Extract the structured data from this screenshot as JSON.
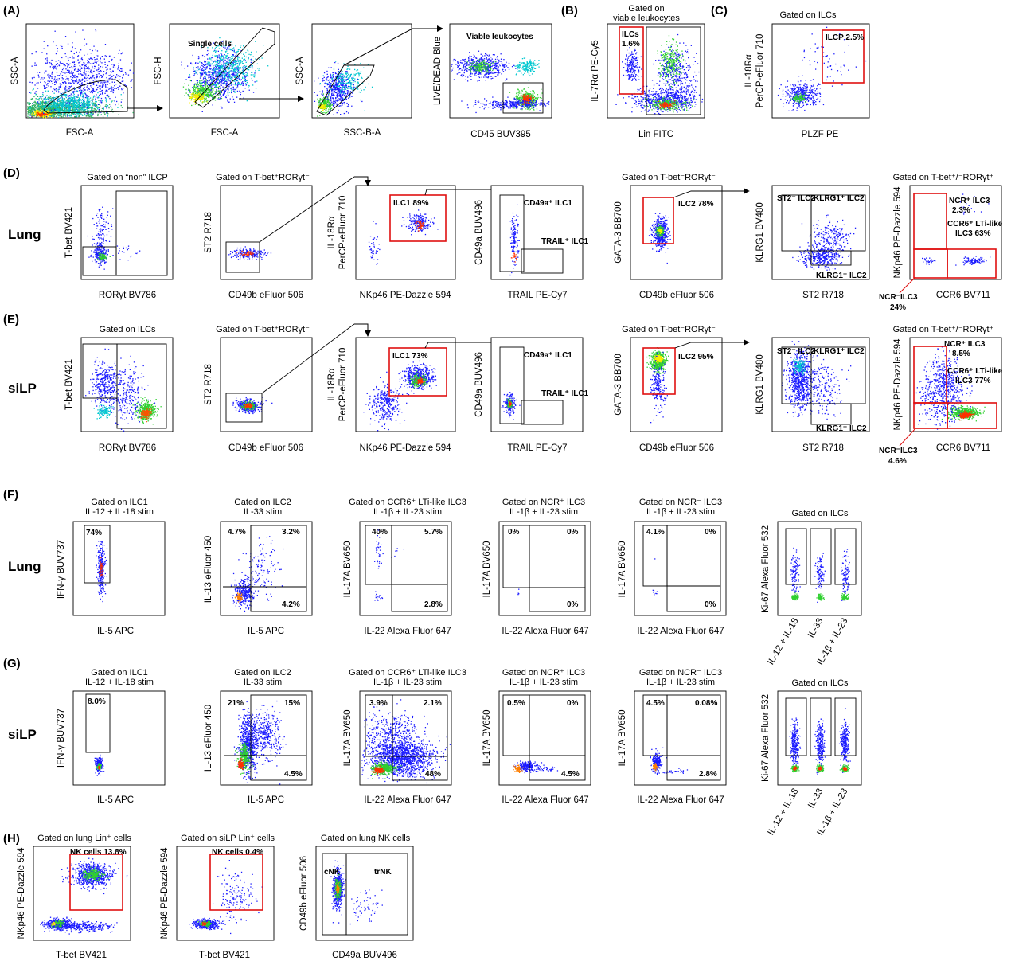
{
  "colors": {
    "red_gate": "#e01010",
    "density": [
      "#1a1aff",
      "#00c8c8",
      "#30d030",
      "#f0f000",
      "#ff8000",
      "#ff0000"
    ]
  },
  "panel_letters": [
    "(A)",
    "(B)",
    "(C)",
    "(D)",
    "(E)",
    "(F)",
    "(G)",
    "(H)"
  ],
  "row_labels": [
    "Lung",
    "siLP",
    "Lung",
    "siLP"
  ],
  "A": {
    "p1": {
      "x": "FSC-A",
      "y": "SSC-A"
    },
    "p2": {
      "x": "FSC-A",
      "y": "FSC-H",
      "gate": "Single cells"
    },
    "p3": {
      "x": "SSC-B-A",
      "y": "SSC-A"
    },
    "p4": {
      "x": "CD45 BUV395",
      "y": "LIVE/DEAD Blue",
      "gate": "Viable leukocytes"
    }
  },
  "B": {
    "title1": "Gated on",
    "title2": "viable leukocytes",
    "x": "Lin FITC",
    "y": "IL-7Rα PE-Cy5",
    "gate1": "ILCs",
    "gate2": "1.6%"
  },
  "C": {
    "title": "Gated on ILCs",
    "x": "PLZF PE",
    "y1": "IL-18Rα",
    "y2": "PerCP-eFluor 710",
    "gate": "ILCP 2.5%"
  },
  "D": {
    "t1": "Gated on “non” ILCP",
    "x1": "RORγt BV786",
    "y1": "T-bet BV421",
    "t2": "Gated on T-bet⁺RORγt⁻",
    "x2": "CD49b eFluor 506",
    "y2": "ST2 R718",
    "x3": "NKp46 PE-Dazzle 594",
    "y3a": "IL-18Rα",
    "y3b": "PerCP-eFluor 710",
    "g3": "ILC1 89%",
    "x4": "TRAIL PE-Cy7",
    "y4": "CD49a BUV496",
    "g4a": "CD49a⁺ ILC1",
    "g4b": "TRAIL⁺ ILC1",
    "t5": "Gated on T-bet⁻RORγt⁻",
    "x5": "CD49b eFluor 506",
    "y5": "GATA-3 BB700",
    "g5": "ILC2 78%",
    "x6": "ST2 R718",
    "y6": "KLRG1 BV480",
    "g6a": "ST2⁻ ILC2",
    "g6b": "KLRG1⁺ ILC2",
    "g6c": "KLRG1⁻ ILC2",
    "t7": "Gated on T-bet⁺/⁻RORγt⁺",
    "x7": "CCR6 BV711",
    "y7": "NKp46 PE-Dazzle 594",
    "g7a1": "NCR⁺ ILC3",
    "g7a2": "2.3%",
    "g7b1": "CCR6⁺ LTi-like",
    "g7b2": "ILC3 63%",
    "g7c1": "NCR⁻ILC3",
    "g7c2": "24%"
  },
  "E": {
    "t1": "Gated on ILCs",
    "x1": "RORγt BV786",
    "y1": "T-bet BV421",
    "t2": "Gated on T-bet⁺RORγt⁻",
    "x2": "CD49b eFluor 506",
    "y2": "ST2 R718",
    "x3": "NKp46 PE-Dazzle 594",
    "y3a": "IL-18Rα",
    "y3b": "PerCP-eFluor 710",
    "g3": "ILC1 73%",
    "x4": "TRAIL PE-Cy7",
    "y4": "CD49a BUV496",
    "g4a": "CD49a⁺ ILC1",
    "g4b": "TRAIL⁺ ILC1",
    "t5": "Gated on T-bet⁻RORγt⁻",
    "x5": "CD49b eFluor 506",
    "y5": "GATA-3 BB700",
    "g5": "ILC2 95%",
    "x6": "ST2 R718",
    "y6": "KLRG1 BV480",
    "g6a": "ST2⁻ ILC2",
    "g6b": "KLRG1⁺ ILC2",
    "g6c": "KLRG1⁻ ILC2",
    "t7": "Gated on T-bet⁺/⁻RORγt⁺",
    "x7": "CCR6 BV711",
    "y7": "NKp46 PE-Dazzle 594",
    "g7a1": "NCR⁺ ILC3",
    "g7a2": "8.5%",
    "g7b1": "CCR6⁺ LTi-like",
    "g7b2": "ILC3 77%",
    "g7c1": "NCR⁻ILC3",
    "g7c2": "4.6%"
  },
  "F": {
    "t1a": "Gated on ILC1",
    "t1b": "IL-12 + IL-18 stim",
    "x1": "IL-5 APC",
    "y1": "IFN-γ BUV737",
    "q1": "74%",
    "t2a": "Gated on ILC2",
    "t2b": "IL-33 stim",
    "x2": "IL-5 APC",
    "y2": "IL-13 eFluor 450",
    "q2": [
      "4.7%",
      "3.2%",
      "4.2%"
    ],
    "t3a": "Gated on CCR6⁺ LTi-like ILC3",
    "t3b": "IL-1β + IL-23 stim",
    "x3": "IL-22 Alexa Fluor 647",
    "y3": "IL-17A BV650",
    "q3": [
      "40%",
      "5.7%",
      "2.8%"
    ],
    "t4a": "Gated on NCR⁺ ILC3",
    "t4b": "IL-1β + IL-23 stim",
    "x4": "IL-22 Alexa Fluor 647",
    "y4": "IL-17A BV650",
    "q4": [
      "0%",
      "0%",
      "0%"
    ],
    "t5a": "Gated on NCR⁻ ILC3",
    "t5b": "IL-1β + IL-23 stim",
    "x5": "IL-22 Alexa Fluor 647",
    "y5": "IL-17A BV650",
    "q5": [
      "4.1%",
      "0%",
      "0%"
    ],
    "t6": "Gated on ILCs",
    "y6": "Ki-67 Alexa Fluor 532",
    "c6": [
      "IL-12 + IL-18",
      "IL-33",
      "IL-1β + IL-23"
    ]
  },
  "G": {
    "t1a": "Gated on ILC1",
    "t1b": "IL-12 + IL-18 stim",
    "x1": "IL-5 APC",
    "y1": "IFN-γ BUV737",
    "q1": "8.0%",
    "t2a": "Gated on ILC2",
    "t2b": "IL-33 stim",
    "x2": "IL-5 APC",
    "y2": "IL-13 eFluor 450",
    "q2": [
      "21%",
      "15%",
      "4.5%"
    ],
    "t3a": "Gated on CCR6⁺ LTi-like ILC3",
    "t3b": "IL-1β + IL-23 stim",
    "x3": "IL-22 Alexa Fluor 647",
    "y3": "IL-17A BV650",
    "q3": [
      "3.9%",
      "2.1%",
      "48%"
    ],
    "t4a": "Gated on NCR⁺ ILC3",
    "t4b": "IL-1β + IL-23 stim",
    "x4": "IL-22 Alexa Fluor 647",
    "y4": "IL-17A BV650",
    "q4": [
      "0.5%",
      "0%",
      "4.5%"
    ],
    "t5a": "Gated on NCR⁻ ILC3",
    "t5b": "IL-1β + IL-23 stim",
    "x5": "IL-22 Alexa Fluor 647",
    "y5": "IL-17A BV650",
    "q5": [
      "4.5%",
      "0.08%",
      "2.8%"
    ],
    "t6": "Gated on ILCs",
    "y6": "Ki-67 Alexa Fluor 532",
    "c6": [
      "IL-12 + IL-18",
      "IL-33",
      "IL-1β + IL-23"
    ]
  },
  "H": {
    "t1": "Gated on lung Lin⁺ cells",
    "x1": "T-bet BV421",
    "y1": "NKp46 PE-Dazzle 594",
    "g1": "NK cells 13.8%",
    "t2": "Gated on siLP Lin⁺ cells",
    "x2": "T-bet BV421",
    "y2": "NKp46 PE-Dazzle 594",
    "g2": "NK cells 0.4%",
    "t3": "Gated on lung NK cells",
    "x3": "CD49a BUV496",
    "y3": "CD49b eFluor 506",
    "g3a": "cNK",
    "g3b": "trNK"
  }
}
